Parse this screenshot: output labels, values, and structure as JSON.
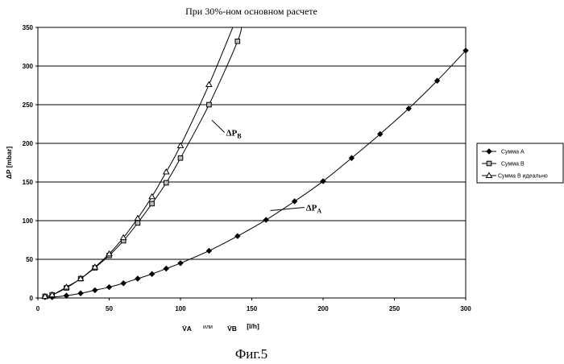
{
  "chart_data": {
    "type": "line",
    "title": "При 30%-ном основном расчете",
    "caption": "Фиг.5",
    "ylabel": "ΔP [mbar]",
    "xlabel": {
      "va": "V̇A",
      "word": "или",
      "vb": "V̇B",
      "unit": "[l/h]"
    },
    "xlim": [
      0,
      300
    ],
    "ylim": [
      0,
      350
    ],
    "xticks": [
      "0",
      "50",
      "100",
      "150",
      "200",
      "250",
      "300"
    ],
    "yticks": [
      "0",
      "50",
      "100",
      "150",
      "200",
      "250",
      "300",
      "350"
    ],
    "grid": "horizontal",
    "legend_position": "right",
    "series": [
      {
        "name": "Сумма А",
        "marker": "diamond",
        "x": [
          5,
          10,
          20,
          30,
          40,
          50,
          60,
          70,
          80,
          90,
          100,
          120,
          140,
          160,
          180,
          200,
          220,
          240,
          260,
          280,
          300
        ],
        "y": [
          1,
          1,
          3,
          6,
          10,
          14,
          19,
          25,
          31,
          38,
          45,
          61,
          80,
          101,
          125,
          151,
          181,
          212,
          245,
          281,
          320
        ]
      },
      {
        "name": "Сумма B",
        "marker": "square",
        "x": [
          5,
          10,
          20,
          30,
          40,
          50,
          60,
          70,
          80,
          90,
          100,
          120,
          140
        ],
        "y": [
          2,
          4,
          13,
          25,
          39,
          55,
          74,
          97,
          122,
          149,
          181,
          250,
          332
        ]
      },
      {
        "name": "Сумма В идеально",
        "marker": "triangle",
        "x": [
          5,
          10,
          20,
          30,
          40,
          50,
          60,
          70,
          80,
          90,
          100,
          120
        ],
        "y": [
          2,
          4,
          14,
          25,
          40,
          57,
          78,
          103,
          131,
          163,
          197,
          276
        ]
      }
    ],
    "annotations": [
      {
        "base": "ΔP",
        "sub": "B",
        "x": 132,
        "y": 210,
        "pointer_to": [
          122,
          230
        ]
      },
      {
        "base": "ΔP",
        "sub": "A",
        "x": 188,
        "y": 113,
        "pointer_to": [
          163,
          113
        ]
      }
    ]
  }
}
